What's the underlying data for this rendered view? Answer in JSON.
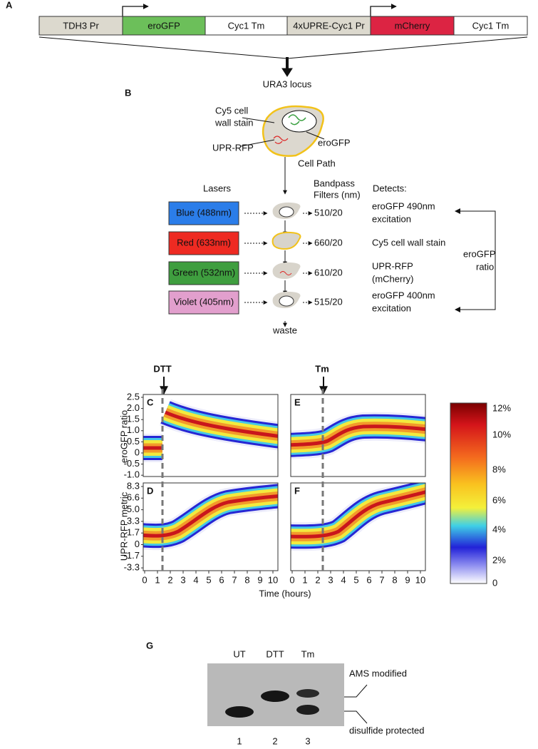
{
  "panel_a": {
    "label": "A",
    "parts": [
      "TDH3 Pr",
      "eroGFP",
      "Cyc1 Tm",
      "4xUPRE-Cyc1 Pr",
      "mCherry",
      "Cyc1 Tm"
    ],
    "locus": "URA3 locus"
  },
  "panel_b": {
    "label": "B",
    "cell_labels": {
      "stain": [
        "Cy5 cell",
        "wall stain"
      ],
      "reporter": "eroGFP",
      "upr": "UPR-RFP"
    },
    "cell_path": "Cell Path",
    "lasers_header": "Lasers",
    "filters_header": [
      "Bandpass",
      "Filters (nm)"
    ],
    "detects_header": "Detects:",
    "lasers": [
      {
        "name": "Blue (488nm)",
        "filter": "510/20",
        "detects": [
          "eroGFP 490nm",
          "excitation"
        ]
      },
      {
        "name": "Red (633nm)",
        "filter": "660/20",
        "detects": [
          "Cy5 cell wall stain"
        ]
      },
      {
        "name": "Green (532nm)",
        "filter": "610/20",
        "detects": [
          "UPR-RFP",
          "(mCherry)"
        ]
      },
      {
        "name": "Violet (405nm)",
        "filter": "515/20",
        "detects": [
          "eroGFP 400nm",
          "excitation"
        ]
      }
    ],
    "ratio_label": [
      "eroGFP",
      "ratio"
    ],
    "waste": "waste"
  },
  "panels_cf": {
    "treatments": [
      "DTT",
      "Tm"
    ],
    "panel_labels": [
      "C",
      "E",
      "D",
      "F"
    ],
    "y_labels": [
      "eroGFP ratio",
      "UPR-RFP metric"
    ],
    "ratio_ticks": [
      "2.5",
      "2.0",
      "1.5",
      "1.0",
      "0.5",
      "0",
      "-0.5",
      "-1.0"
    ],
    "metric_ticks": [
      "8.3",
      "6.6",
      "5.0",
      "3.3",
      "1.7",
      "0",
      "-1.7",
      "-3.3"
    ],
    "time_ticks": [
      "0",
      "1",
      "2",
      "3",
      "4",
      "5",
      "6",
      "7",
      "8",
      "9",
      "10"
    ],
    "x_label": "Time (hours)",
    "colorbar_ticks": [
      "12%",
      "10%",
      "8%",
      "6%",
      "4%",
      "2%",
      "0"
    ]
  },
  "panel_g": {
    "label": "G",
    "lanes": [
      "UT",
      "DTT",
      "Tm"
    ],
    "bands": [
      "AMS modified",
      "disulfide protected"
    ],
    "lane_numbers": [
      "1",
      "2",
      "3"
    ]
  }
}
